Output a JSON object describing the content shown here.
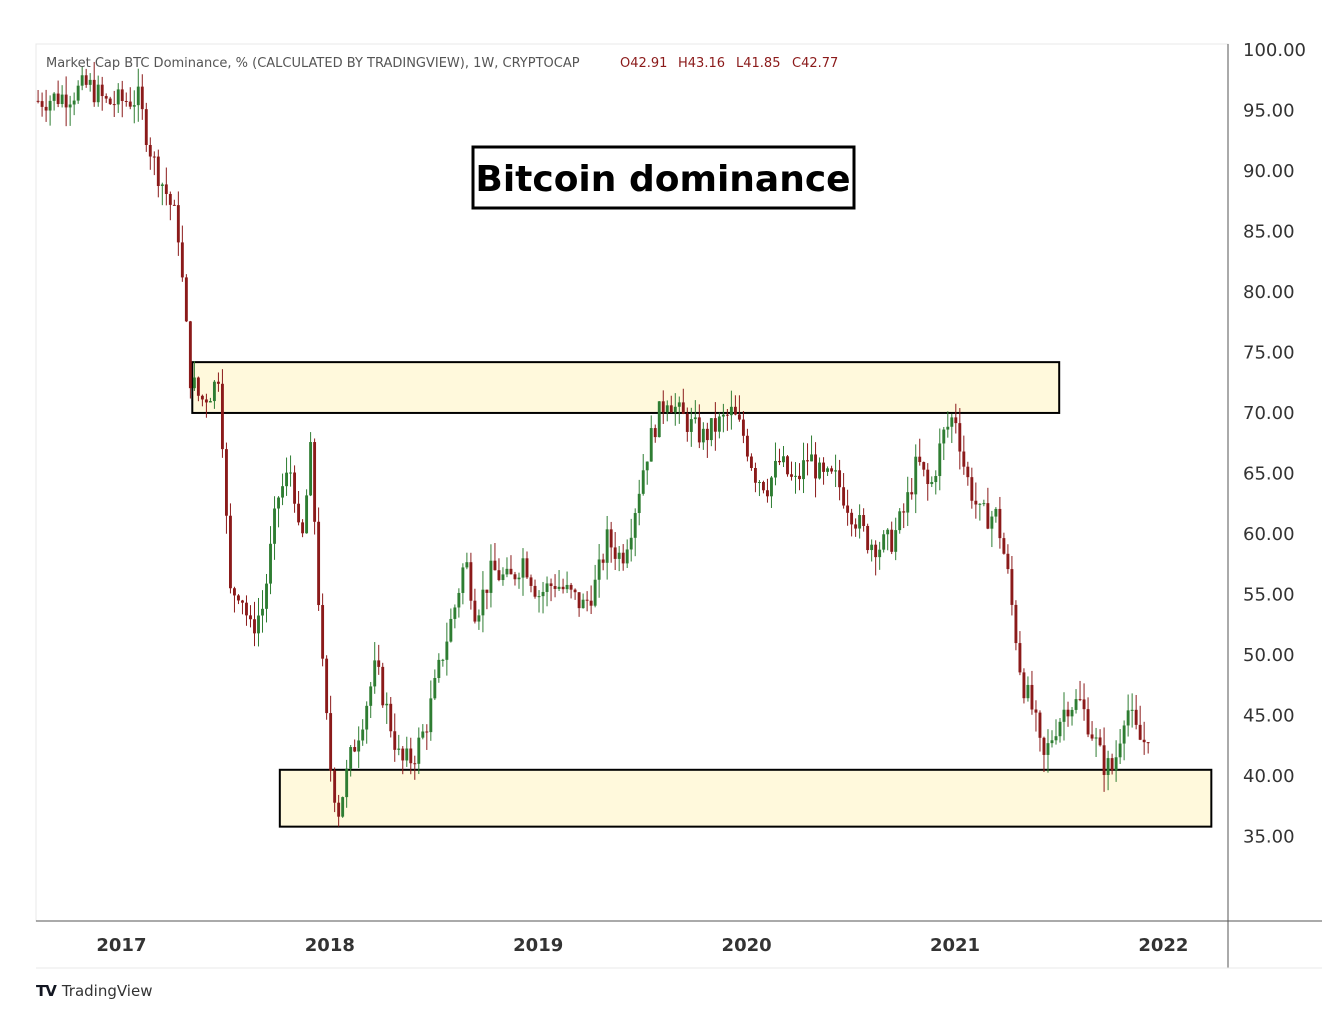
{
  "header": {
    "symbol_text": "Market Cap BTC Dominance, % (CALCULATED BY TRADINGVIEW), 1W, CRYPTOCAP",
    "open": "O42.91",
    "high": "H43.16",
    "low": "L41.85",
    "close": "C42.77"
  },
  "brand": {
    "logo": "𝟏𝐕",
    "name": "TradingView"
  },
  "colors": {
    "up": "#2e7d32",
    "down": "#8b1a1a",
    "zone_fill": "#fff9dc",
    "zone_stroke": "#000000"
  },
  "chart_data": {
    "type": "candlestick",
    "title": "Bitcoin dominance",
    "xlabel": "",
    "ylabel": "",
    "ylim": [
      28,
      100.5
    ],
    "y_ticks": [
      "100.00",
      "95.00",
      "90.00",
      "85.00",
      "80.00",
      "75.00",
      "70.00",
      "65.00",
      "60.00",
      "55.00",
      "50.00",
      "45.00",
      "40.00",
      "35.00"
    ],
    "x_ticks": [
      "2017",
      "2018",
      "2019",
      "2020",
      "2021",
      "2022"
    ],
    "xlim": [
      2016.59,
      2022.31
    ],
    "close_path": [
      [
        2016.6,
        95.8
      ],
      [
        2016.75,
        96.3
      ],
      [
        2016.84,
        97.1
      ],
      [
        2016.93,
        95.6
      ],
      [
        2017.08,
        96.0
      ],
      [
        2017.15,
        91.0
      ],
      [
        2017.22,
        88.0
      ],
      [
        2017.27,
        85.5
      ],
      [
        2017.33,
        73.0
      ],
      [
        2017.38,
        71.0
      ],
      [
        2017.44,
        72.0
      ],
      [
        2017.47,
        73.5
      ],
      [
        2017.52,
        55.0
      ],
      [
        2017.57,
        55.5
      ],
      [
        2017.62,
        52.0
      ],
      [
        2017.68,
        54.0
      ],
      [
        2017.75,
        63.0
      ],
      [
        2017.82,
        65.5
      ],
      [
        2017.86,
        58.0
      ],
      [
        2017.91,
        67.0
      ],
      [
        2017.96,
        50.0
      ],
      [
        2018.0,
        41.0
      ],
      [
        2018.04,
        37.0
      ],
      [
        2018.1,
        41.5
      ],
      [
        2018.16,
        45.0
      ],
      [
        2018.22,
        49.0
      ],
      [
        2018.28,
        45.0
      ],
      [
        2018.34,
        41.0
      ],
      [
        2018.4,
        41.5
      ],
      [
        2018.46,
        44.0
      ],
      [
        2018.54,
        50.0
      ],
      [
        2018.6,
        54.0
      ],
      [
        2018.65,
        58.0
      ],
      [
        2018.7,
        53.5
      ],
      [
        2018.78,
        57.0
      ],
      [
        2018.86,
        56.0
      ],
      [
        2018.93,
        58.0
      ],
      [
        2019.0,
        55.0
      ],
      [
        2019.08,
        56.0
      ],
      [
        2019.15,
        55.0
      ],
      [
        2019.22,
        54.0
      ],
      [
        2019.28,
        56.0
      ],
      [
        2019.33,
        59.5
      ],
      [
        2019.4,
        58.0
      ],
      [
        2019.45,
        61.0
      ],
      [
        2019.51,
        66.0
      ],
      [
        2019.56,
        69.0
      ],
      [
        2019.62,
        71.5
      ],
      [
        2019.67,
        70.0
      ],
      [
        2019.73,
        69.0
      ],
      [
        2019.79,
        68.0
      ],
      [
        2019.86,
        69.0
      ],
      [
        2019.93,
        70.0
      ],
      [
        2019.99,
        68.0
      ],
      [
        2020.04,
        65.0
      ],
      [
        2020.1,
        64.0
      ],
      [
        2020.16,
        66.0
      ],
      [
        2020.23,
        64.0
      ],
      [
        2020.3,
        66.5
      ],
      [
        2020.36,
        64.5
      ],
      [
        2020.43,
        64.5
      ],
      [
        2020.5,
        62.0
      ],
      [
        2020.58,
        59.5
      ],
      [
        2020.64,
        59.0
      ],
      [
        2020.7,
        59.5
      ],
      [
        2020.76,
        62.0
      ],
      [
        2020.82,
        66.0
      ],
      [
        2020.88,
        63.5
      ],
      [
        2020.94,
        68.0
      ],
      [
        2021.0,
        70.0
      ],
      [
        2021.05,
        65.0
      ],
      [
        2021.12,
        61.5
      ],
      [
        2021.2,
        61.5
      ],
      [
        2021.25,
        57.0
      ],
      [
        2021.32,
        48.0
      ],
      [
        2021.38,
        45.0
      ],
      [
        2021.42,
        41.0
      ],
      [
        2021.48,
        44.0
      ],
      [
        2021.54,
        46.0
      ],
      [
        2021.6,
        46.0
      ],
      [
        2021.65,
        44.0
      ],
      [
        2021.71,
        41.0
      ],
      [
        2021.76,
        40.5
      ],
      [
        2021.82,
        46.0
      ],
      [
        2021.88,
        43.0
      ],
      [
        2021.93,
        42.77
      ]
    ],
    "annotations": [
      {
        "type": "zone",
        "x": [
          2017.34,
          2021.5
        ],
        "y": [
          70.0,
          74.2
        ]
      },
      {
        "type": "zone",
        "x": [
          2017.76,
          2022.23
        ],
        "y": [
          35.8,
          40.5
        ]
      }
    ],
    "grid": false,
    "legend": "none"
  }
}
